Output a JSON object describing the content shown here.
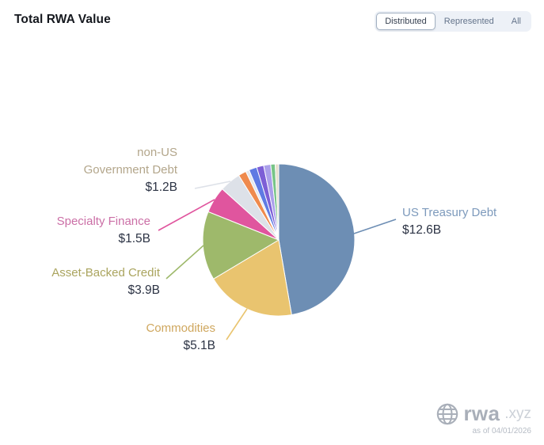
{
  "header": {
    "title": "Total RWA Value",
    "toggles": [
      {
        "label": "Distributed",
        "active": true
      },
      {
        "label": "Represented",
        "active": false
      },
      {
        "label": "All",
        "active": false
      }
    ]
  },
  "chart_data": {
    "type": "pie",
    "title": "Total RWA Value",
    "slices": [
      {
        "label": "US Treasury Debt",
        "value_b": 12.6,
        "value_label": "$12.6B",
        "color": "#6d8eb4",
        "label_color": "#7d9abc"
      },
      {
        "label": "Commodities",
        "value_b": 5.1,
        "value_label": "$5.1B",
        "color": "#e9c46f",
        "label_color": "#cfa75e"
      },
      {
        "label": "Asset-Backed Credit",
        "value_b": 3.9,
        "value_label": "$3.9B",
        "color": "#9eb96b",
        "label_color": "#aaa45e"
      },
      {
        "label": "Specialty Finance",
        "value_b": 1.5,
        "value_label": "$1.5B",
        "color": "#e0559e",
        "label_color": "#cb6fa6"
      },
      {
        "label": "non-US Government Debt",
        "value_b": 1.2,
        "value_label": "$1.2B",
        "color": "#dde1e8",
        "label_color": "#b3a68b"
      },
      {
        "label": "",
        "value_b": 0.45,
        "value_label": "",
        "color": "#ef8a4d",
        "label_color": ""
      },
      {
        "label": "",
        "value_b": 0.2,
        "value_label": "",
        "color": "#e4e8ee",
        "label_color": ""
      },
      {
        "label": "",
        "value_b": 0.45,
        "value_label": "",
        "color": "#5f7ae3",
        "label_color": ""
      },
      {
        "label": "",
        "value_b": 0.4,
        "value_label": "",
        "color": "#7d5fd6",
        "label_color": ""
      },
      {
        "label": "",
        "value_b": 0.4,
        "value_label": "",
        "color": "#aba0ea",
        "label_color": ""
      },
      {
        "label": "",
        "value_b": 0.25,
        "value_label": "",
        "color": "#77c487",
        "label_color": ""
      },
      {
        "label": "",
        "value_b": 0.2,
        "value_label": "",
        "color": "#e6dfcc",
        "label_color": ""
      }
    ]
  },
  "footer": {
    "brand": "rwa",
    "brand_suffix": ".xyz",
    "as_of": "as of 04/01/2026"
  }
}
